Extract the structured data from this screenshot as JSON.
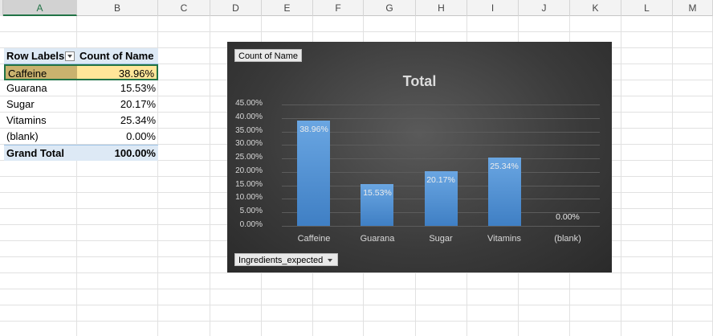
{
  "columns": [
    "A",
    "B",
    "C",
    "D",
    "E",
    "F",
    "G",
    "H",
    "I",
    "J",
    "K",
    "L",
    "M"
  ],
  "pivot": {
    "header": {
      "row_labels": "Row Labels",
      "value_field": "Count of Name"
    },
    "rows": [
      {
        "label": "Caffeine",
        "value": "38.96%"
      },
      {
        "label": "Guarana",
        "value": "15.53%"
      },
      {
        "label": "Sugar",
        "value": "20.17%"
      },
      {
        "label": "Vitamins",
        "value": "25.34%"
      },
      {
        "label": "(blank)",
        "value": "0.00%"
      }
    ],
    "grand_total": {
      "label": "Grand Total",
      "value": "100.00%"
    }
  },
  "chart": {
    "value_field_button": "Count of Name",
    "axis_field_button": "Ingredients_expected",
    "title": "Total"
  },
  "colors": {
    "bar": "#5b9bd5",
    "selected_cell": "#ffe699",
    "header_fill": "#dde9f5",
    "chart_bg": "#404040"
  },
  "chart_data": {
    "type": "bar",
    "title": "Total",
    "categories": [
      "Caffeine",
      "Guarana",
      "Sugar",
      "Vitamins",
      "(blank)"
    ],
    "values": [
      38.96,
      15.53,
      20.17,
      25.34,
      0.0
    ],
    "data_labels": [
      "38.96%",
      "15.53%",
      "20.17%",
      "25.34%",
      "0.00%"
    ],
    "yticks": [
      "0.00%",
      "5.00%",
      "10.00%",
      "15.00%",
      "20.00%",
      "25.00%",
      "30.00%",
      "35.00%",
      "40.00%",
      "45.00%"
    ],
    "ylim": [
      0,
      45
    ],
    "grid": true,
    "legend": "none"
  }
}
